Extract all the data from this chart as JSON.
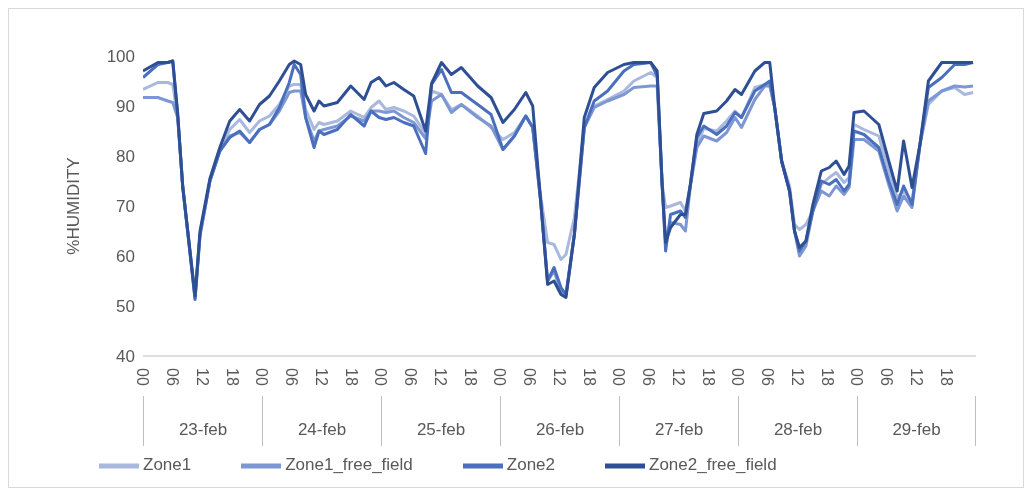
{
  "chart_data": {
    "type": "line",
    "ylabel": "%HUMIDITY",
    "x": [
      0,
      3,
      5,
      6,
      7,
      8,
      10.5,
      11.5,
      13.5,
      15.5,
      17.5,
      19.5,
      21.5,
      23.5,
      25.5,
      27.5,
      29.5,
      30.5,
      31.8,
      32.8,
      34.5,
      35.5,
      36.5,
      39.2,
      41.9,
      44.6,
      46,
      47.6,
      49,
      50.6,
      52.6,
      54.6,
      57,
      58.2,
      60.2,
      62.2,
      64.2,
      67.5,
      70.2,
      72.6,
      74.9,
      77.2,
      78.6,
      80.2,
      81.6,
      82.9,
      84.3,
      85.3,
      87,
      89,
      91,
      93.7,
      97,
      99,
      102.4,
      103.7,
      104.7,
      105.4,
      106.4,
      108.4,
      109.4,
      110.4,
      111.7,
      113.1,
      115.7,
      117.7,
      119.4,
      120.7,
      123.4,
      125.4,
      126.4,
      127.4,
      128.8,
      130.4,
      131.4,
      132.4,
      133.7,
      135.1,
      136.8,
      138.4,
      139.8,
      141.4,
      142.4,
      143.4,
      145.4,
      148.4,
      150.4,
      152.1,
      153.4,
      155.1,
      156.7,
      158.4,
      161.1,
      163.7,
      165.7,
      167.4
    ],
    "series": [
      {
        "name": "Zone1",
        "color": "#a9b8de",
        "values": [
          93.3,
          94.7,
          94.7,
          94.3,
          87.7,
          74,
          52,
          64,
          75,
          81.5,
          85.3,
          87.3,
          84.7,
          87,
          88,
          90.3,
          94,
          94.3,
          94.3,
          89.3,
          85.3,
          86.7,
          86.3,
          87,
          89,
          87.7,
          89.7,
          91,
          89.3,
          89.7,
          89,
          88,
          84.5,
          93,
          92.3,
          89.3,
          90.3,
          88,
          85.7,
          83.3,
          84.7,
          88,
          85.7,
          72,
          62.7,
          62.3,
          59.3,
          60.3,
          67.7,
          85.7,
          90,
          91.3,
          93,
          95,
          96.7,
          95.7,
          74.3,
          69.7,
          70,
          70.7,
          69,
          74.3,
          82.3,
          85.5,
          85,
          87,
          89,
          87.7,
          93.7,
          94.3,
          94.3,
          89.7,
          79,
          74,
          66.3,
          65.3,
          66.3,
          69,
          74.3,
          75.7,
          76.7,
          74.7,
          75.7,
          86.3,
          85.3,
          84,
          77,
          71.7,
          73,
          71,
          82.3,
          90.3,
          93,
          93.7,
          92.3,
          92.7
        ]
      },
      {
        "name": "Zone1_free_field",
        "color": "#7c97d3",
        "values": [
          91.7,
          91.7,
          91,
          90.7,
          87.7,
          74,
          51.5,
          64.3,
          75,
          81,
          84,
          84.7,
          82.7,
          85.3,
          86.3,
          89,
          92.7,
          93,
          93,
          87.7,
          83,
          85,
          85.3,
          86,
          88,
          87,
          89,
          89,
          88.7,
          89,
          87.7,
          86.7,
          83.5,
          91,
          92.3,
          88.7,
          90.3,
          87.7,
          86,
          81.3,
          84,
          88,
          85.7,
          71,
          55,
          57,
          53,
          52,
          64.3,
          85.7,
          89.7,
          91,
          92.3,
          93.7,
          94,
          94,
          74.3,
          63,
          66.7,
          66.3,
          65,
          74,
          81.7,
          84,
          83,
          84.7,
          87.7,
          85.7,
          91.3,
          94,
          94,
          89.7,
          79,
          73,
          65,
          60,
          62,
          69,
          73,
          72,
          74,
          72.3,
          73.7,
          83.3,
          83.3,
          81,
          74.3,
          69,
          72,
          69.7,
          82.3,
          91,
          93,
          94,
          93.8,
          94
        ]
      },
      {
        "name": "Zone2",
        "color": "#4a6fbd",
        "values": [
          95.7,
          98.3,
          98.7,
          99,
          88,
          74,
          51.3,
          64.3,
          75,
          81,
          83.7,
          85,
          82.7,
          85.3,
          86.3,
          89.7,
          94.7,
          98.3,
          96.3,
          87.7,
          81.7,
          85,
          84.3,
          85.3,
          88.3,
          86,
          89,
          87.7,
          87.3,
          87.7,
          86.7,
          86,
          80.5,
          94.3,
          97.3,
          92.7,
          92.7,
          90.3,
          88.3,
          81.3,
          84,
          88,
          85.7,
          71,
          55,
          57.7,
          53.7,
          52.3,
          64.3,
          85.7,
          91,
          93,
          97,
          98.3,
          98.7,
          96,
          74.3,
          61,
          68.3,
          69,
          67.7,
          74.3,
          83.7,
          86,
          84.3,
          86,
          88.7,
          87.7,
          93,
          94.3,
          95,
          89.7,
          79,
          73,
          65,
          61,
          63,
          69,
          75,
          74.3,
          75.3,
          73,
          74.3,
          85,
          84.3,
          81.7,
          75,
          70.3,
          74,
          70.3,
          82.3,
          93.7,
          95.7,
          98.3,
          98.3,
          98.7
        ]
      },
      {
        "name": "Zone2_free_field",
        "color": "#2f4f95",
        "values": [
          97,
          98.7,
          98.7,
          99,
          88.5,
          74,
          52,
          65,
          75.5,
          81.7,
          87,
          89.3,
          87,
          90.3,
          92,
          95,
          98.3,
          99,
          98.3,
          92.3,
          89,
          91,
          90,
          90.7,
          94,
          91.3,
          94.7,
          95.7,
          94,
          94.7,
          93.3,
          92,
          85,
          94.5,
          98.7,
          96.3,
          97.7,
          94,
          91.7,
          86.7,
          89.3,
          92.7,
          90,
          71,
          54.3,
          55,
          52.3,
          51.7,
          64.3,
          87.7,
          93.7,
          96.7,
          98.3,
          98.7,
          98.7,
          97,
          74.3,
          62.7,
          65.7,
          68.3,
          68.3,
          74.3,
          84.3,
          88.5,
          89,
          91,
          93.3,
          92.3,
          97,
          98.7,
          98.7,
          89.7,
          79,
          73,
          65,
          61.7,
          63,
          70.3,
          77,
          77.7,
          79,
          76.3,
          78,
          88.7,
          89,
          86.3,
          79,
          73,
          83,
          73.7,
          82.3,
          95,
          98.7,
          98.7,
          98.7,
          98.7
        ]
      }
    ],
    "xlim": [
      0,
      168
    ],
    "xticks": [
      {
        "value": 0,
        "label": "00"
      },
      {
        "value": 6,
        "label": "06"
      },
      {
        "value": 12,
        "label": "12"
      },
      {
        "value": 18,
        "label": "18"
      },
      {
        "value": 24,
        "label": "00"
      },
      {
        "value": 30,
        "label": "06"
      },
      {
        "value": 36,
        "label": "12"
      },
      {
        "value": 42,
        "label": "18"
      },
      {
        "value": 48,
        "label": "00"
      },
      {
        "value": 54,
        "label": "06"
      },
      {
        "value": 60,
        "label": "12"
      },
      {
        "value": 66,
        "label": "18"
      },
      {
        "value": 72,
        "label": "00"
      },
      {
        "value": 78,
        "label": "06"
      },
      {
        "value": 84,
        "label": "12"
      },
      {
        "value": 90,
        "label": "18"
      },
      {
        "value": 96,
        "label": "00"
      },
      {
        "value": 102,
        "label": "06"
      },
      {
        "value": 108,
        "label": "12"
      },
      {
        "value": 114,
        "label": "18"
      },
      {
        "value": 120,
        "label": "00"
      },
      {
        "value": 126,
        "label": "06"
      },
      {
        "value": 132,
        "label": "12"
      },
      {
        "value": 138,
        "label": "18"
      },
      {
        "value": 144,
        "label": "00"
      },
      {
        "value": 150,
        "label": "06"
      },
      {
        "value": 156,
        "label": "12"
      },
      {
        "value": 162,
        "label": "18"
      }
    ],
    "ylim": [
      40,
      100
    ],
    "yticks": [
      40,
      50,
      60,
      70,
      80,
      90,
      100
    ],
    "annotations": [
      "23-feb",
      "24-feb",
      "25-feb",
      "26-feb",
      "27-feb",
      "28-feb",
      "29-feb"
    ],
    "legend": "bottom",
    "line_style": "solid",
    "grid": false
  }
}
